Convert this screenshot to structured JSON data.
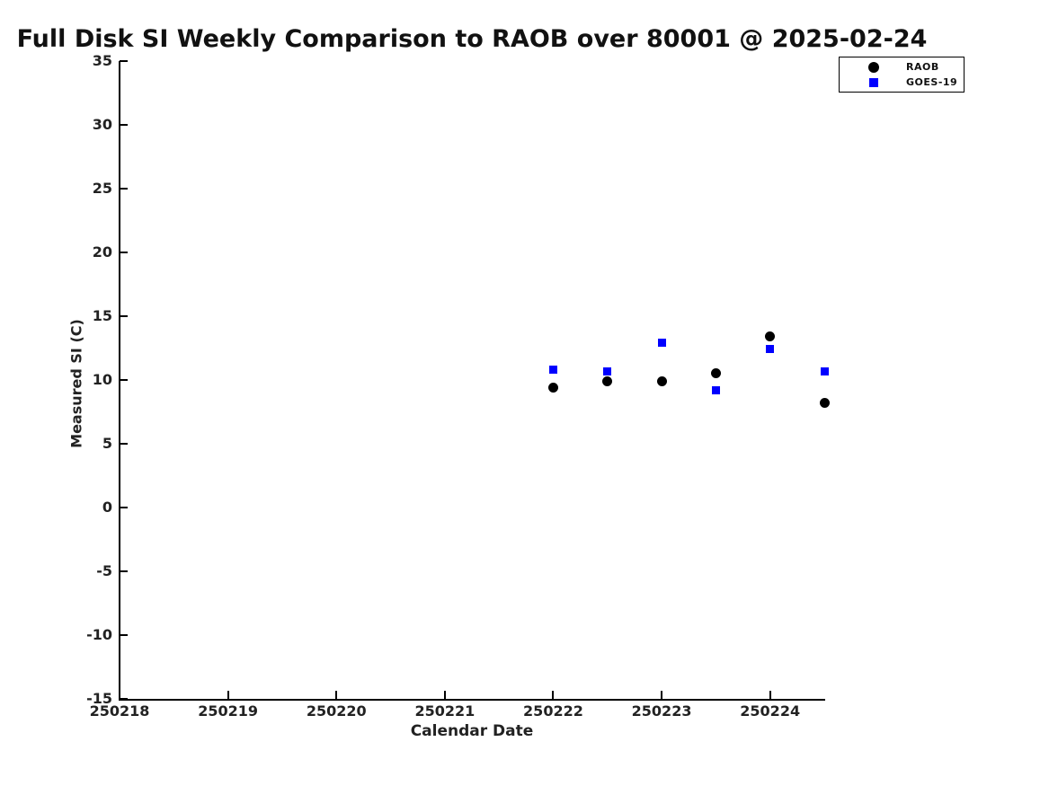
{
  "chart_data": {
    "type": "scatter",
    "title": "Full Disk SI Weekly Comparison to RAOB over 80001 @ 2025-02-24",
    "xlabel": "Calendar Date",
    "ylabel": "Measured SI (C)",
    "xlim": [
      250218,
      250224.5
    ],
    "ylim": [
      -15,
      35
    ],
    "grid": false,
    "legend_position": "top-right",
    "xticks": {
      "values": [
        250218,
        250219,
        250220,
        250221,
        250222,
        250223,
        250224
      ],
      "labels": [
        "250218",
        "250219",
        "250220",
        "250221",
        "250222",
        "250223",
        "250224"
      ]
    },
    "yticks": {
      "values": [
        -15,
        -10,
        -5,
        0,
        5,
        10,
        15,
        20,
        25,
        30,
        35
      ],
      "labels": [
        "-15",
        "-10",
        "-5",
        "0",
        "5",
        "10",
        "15",
        "20",
        "25",
        "30",
        "35"
      ]
    },
    "series": [
      {
        "name": "RAOB",
        "marker": "circle",
        "color": "#000000",
        "x": [
          250222.0,
          250222.5,
          250223.0,
          250223.5,
          250224.0,
          250224.5
        ],
        "y": [
          9.4,
          9.9,
          9.9,
          10.5,
          13.4,
          8.2
        ]
      },
      {
        "name": "GOES-19",
        "marker": "square",
        "color": "#0000ff",
        "x": [
          250222.0,
          250222.5,
          250223.0,
          250223.5,
          250224.0,
          250224.5
        ],
        "y": [
          10.8,
          10.7,
          12.9,
          9.2,
          12.4,
          10.7
        ]
      }
    ]
  }
}
